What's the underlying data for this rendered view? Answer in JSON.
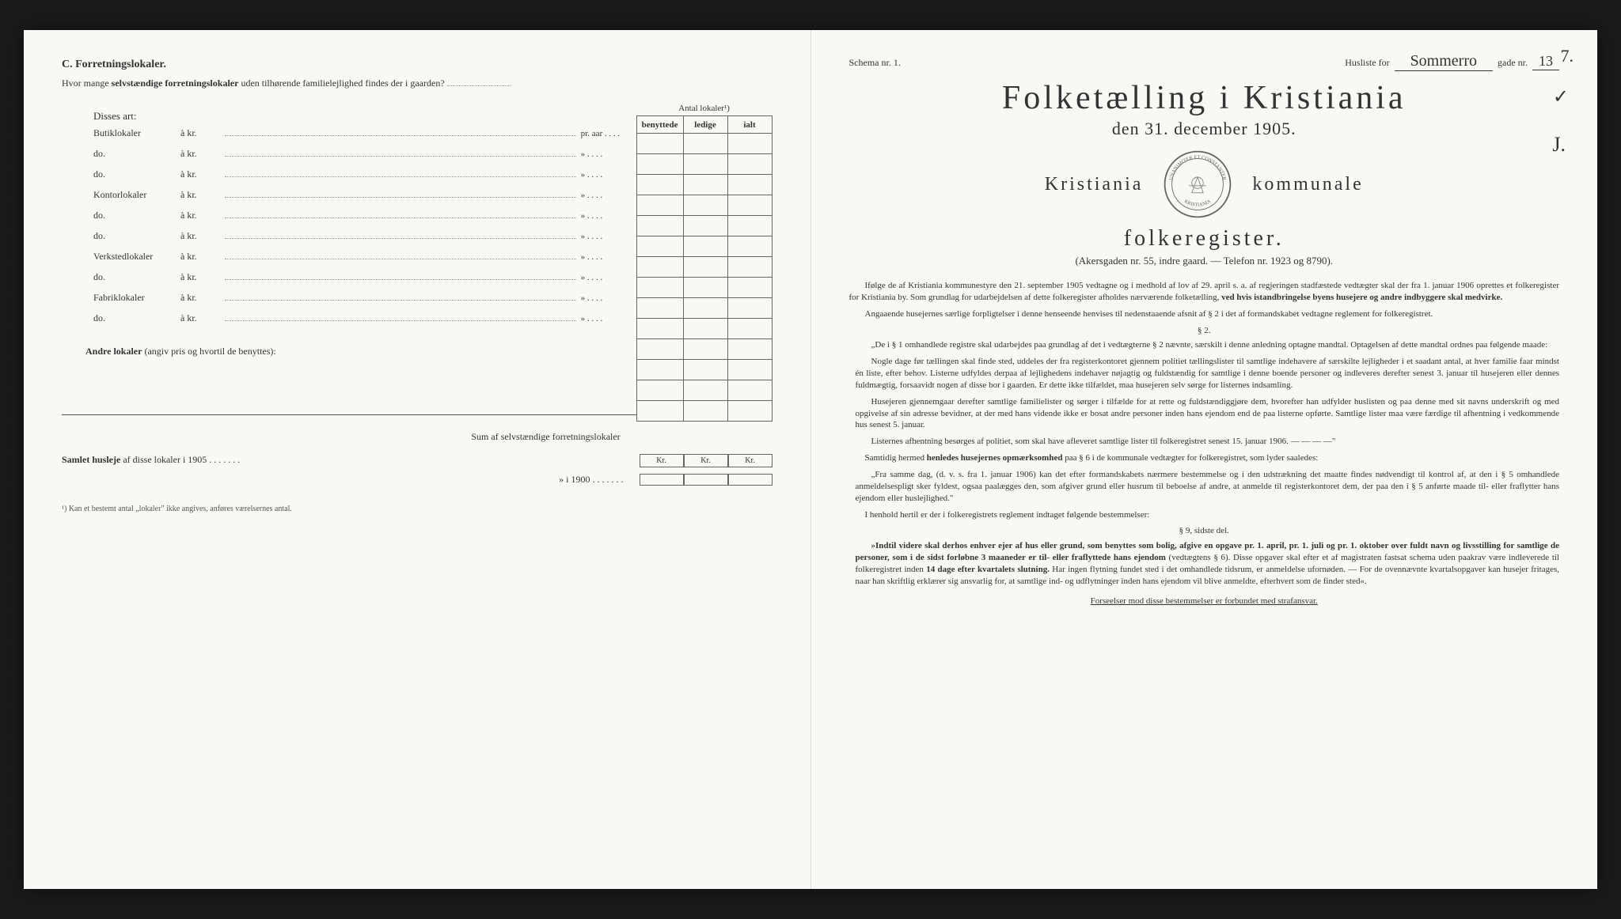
{
  "left": {
    "section": "C. Forretningslokaler.",
    "question_prefix": "Hvor mange ",
    "question_bold": "selvstændige forretningslokaler",
    "question_suffix": " uden tilhørende familielejlighed findes der i gaarden?",
    "disses_art": "Disses art:",
    "table_caption": "Antal lokaler¹)",
    "col1": "benyttede",
    "col2": "ledige",
    "col3": "ialt",
    "rows": [
      {
        "label": "Butiklokaler",
        "kr": "à kr.",
        "pr": "pr. aar"
      },
      {
        "label": "do.",
        "kr": "à kr.",
        "pr": "»"
      },
      {
        "label": "do.",
        "kr": "à kr.",
        "pr": "»"
      },
      {
        "label": "Kontorlokaler",
        "kr": "à kr.",
        "pr": "»"
      },
      {
        "label": "do.",
        "kr": "à kr.",
        "pr": "»"
      },
      {
        "label": "do.",
        "kr": "à kr.",
        "pr": "»"
      },
      {
        "label": "Verkstedlokaler",
        "kr": "à kr.",
        "pr": "»"
      },
      {
        "label": "do.",
        "kr": "à kr.",
        "pr": "»"
      },
      {
        "label": "Fabriklokaler",
        "kr": "à kr.",
        "pr": "»"
      },
      {
        "label": "do.",
        "kr": "à kr.",
        "pr": "»"
      }
    ],
    "andre_bold": "Andre lokaler",
    "andre_rest": " (angiv pris og hvortil de benyttes):",
    "sum_line": "Sum af selvstændige forretningslokaler",
    "husleje_prefix": "Samlet husleje",
    "husleje_1905": " af disse lokaler i 1905 . . . . . . .",
    "husleje_1900": "» i 1900 . . . . . . .",
    "kr_label": "Kr.",
    "footnote": "¹) Kan et bestemt antal „lokaler\" ikke angives, anføres værelsernes antal."
  },
  "right": {
    "schema": "Schema nr. 1.",
    "husliste_for": "Husliste for",
    "street": "Sommerro",
    "gade": "gade nr.",
    "gade_nr": "13",
    "corner_num": "7.",
    "corner_check": "✓",
    "corner_j": "J.",
    "title": "Folketælling i Kristiania",
    "subtitle": "den 31. december 1905.",
    "seal_left": "Kristiania",
    "seal_right": "kommunale",
    "seal_motto_top": "UNANIMITER ET CONSTANTER",
    "seal_motto_bottom": "KRISTIANIA",
    "folkeregister": "folkeregister.",
    "address": "(Akersgaden nr. 55, indre gaard. — Telefon nr. 1923 og 8790).",
    "para1": "Ifølge de af Kristiania kommunestyre den 21. september 1905 vedtagne og i medhold af lov af 29. april s. a. af regjeringen stadfæstede vedtægter skal der fra 1. januar 1906 oprettes et folkeregister for Kristiania by. Som grundlag for udarbejdelsen af dette folkeregister afholdes nærværende folketælling, ",
    "para1_bold": "ved hvis istandbringelse byens husejere og andre indbyggere skal medvirke.",
    "para2": "Angaaende husejernes særlige forpligtelser i denne henseende henvises til nedenstaaende afsnit af § 2 i det af formandskabet vedtagne reglement for folkeregistret.",
    "para_num_2": "§ 2.",
    "para3": "„De i § 1 omhandlede registre skal udarbejdes paa grundlag af det i vedtægterne § 2 nævnte, særskilt i denne anledning optagne mandtal. Optagelsen af dette mandtal ordnes paa følgende maade:",
    "para4": "Nogle dage før tællingen skal finde sted, uddeles der fra registerkontoret gjennem politiet tællingslister til samtlige indehavere af særskilte lejligheder i et saadant antal, at hver familie faar mindst én liste, efter behov. Listerne udfyldes derpaa af lejlighedens indehaver nøjagtig og fuldstændig for samtlige i denne boende personer og indleveres derefter senest 3. januar til husejeren eller dennes fuldmægtig, forsaavidt nogen af disse bor i gaarden. Er dette ikke tilfældet, maa husejeren selv sørge for listernes indsamling.",
    "para5": "Husejeren gjennemgaar derefter samtlige familielister og sørger i tilfælde for at rette og fuldstændiggjøre dem, hvorefter han udfylder huslisten og paa denne med sit navns underskrift og med opgivelse af sin adresse bevidner, at der med hans vidende ikke er bosat andre personer inden hans ejendom end de paa listerne opførte. Samtlige lister maa være færdige til afhentning i vedkommende hus senest 5. januar.",
    "para6": "Listernes afhentning besørges af politiet, som skal have afleveret samtlige lister til folkeregistret senest 15. januar 1906. — — — —\"",
    "para7_pre": "Samtidig hermed ",
    "para7_bold": "henledes husejernes opmærksomhed",
    "para7_post": " paa § 6 i de kommunale vedtægter for folkeregistret, som lyder saaledes:",
    "para8": "„Fra samme dag, (d. v. s. fra 1. januar 1906) kan det efter formandskabets nærmere bestemmelse og i den udstrækning det maatte findes nødvendigt til kontrol af, at den i § 5 omhandlede anmeldelsespligt sker fyldest, ogsaa paalægges den, som afgiver grund eller husrum til beboelse af andre, at anmelde til registerkontoret dem, der paa den i § 5 anførte maade til- eller fraflytter hans ejendom eller huslejlighed.\"",
    "para9": "I henhold hertil er der i folkeregistrets reglement indtaget følgende bestemmelser:",
    "para_num_9": "§ 9, sidste del.",
    "para10_bold": "»Indtil videre skal derhos enhver ejer af hus eller grund, som benyttes som bolig, afgive en opgave pr. 1. april, pr. 1. juli og pr. 1. oktober over fuldt navn og livsstilling for samtlige de personer, som i de sidst forløbne 3 maaneder er til- eller fraflyttede hans ejendom",
    "para10_rest": " (vedtægtens § 6). Disse opgaver skal efter et af magistraten fastsat schema uden paakrav være indleverede til folkeregistret inden ",
    "para10_bold2": "14 dage efter kvartalets slutning.",
    "para10_rest2": " Har ingen flytning fundet sted i det omhandlede tidsrum, er anmeldelse ufornøden. — For de ovennævnte kvartalsopgaver kan husejer fritages, naar han skriftlig erklærer sig ansvarlig for, at samtlige ind- og udflytninger inden hans ejendom vil blive anmeldte, efterhvert som de finder sted«.",
    "final": "Forseelser mod disse bestemmelser er forbundet med strafansvar."
  }
}
